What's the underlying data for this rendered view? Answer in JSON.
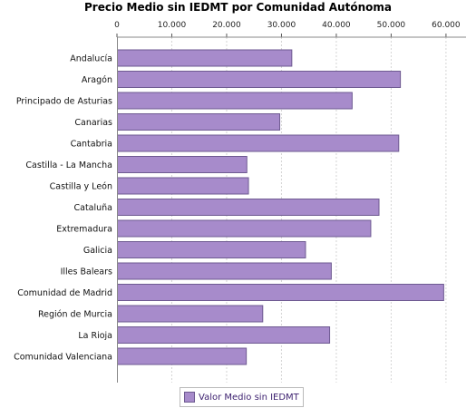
{
  "chart_data": {
    "type": "bar",
    "orientation": "horizontal",
    "title": "Precio Medio sin IEDMT por Comunidad Autónoma",
    "categories": [
      "Andalucía",
      "Aragón",
      "Principado de Asturias",
      "Canarias",
      "Cantabria",
      "Castilla - La Mancha",
      "Castilla y León",
      "Cataluña",
      "Extremadura",
      "Galicia",
      "Illes Balears",
      "Comunidad de Madrid",
      "Región de Murcia",
      "La Rioja",
      "Comunidad Valenciana"
    ],
    "series": [
      {
        "name": "Valor Medio sin IEDMT",
        "values": [
          31800,
          51600,
          42800,
          29600,
          51300,
          23600,
          23900,
          47700,
          46200,
          34300,
          39000,
          59500,
          26500,
          38700,
          23500
        ]
      }
    ],
    "x_ticks": [
      "0",
      "10.000",
      "20.000",
      "30.000",
      "40.000",
      "50.000",
      "60.000"
    ],
    "xlim": [
      0,
      62000
    ],
    "axis_position": "top",
    "grid": true,
    "legend_position": "bottom",
    "bar_color": "#a78bcb",
    "bar_border": "#6e5a91"
  }
}
